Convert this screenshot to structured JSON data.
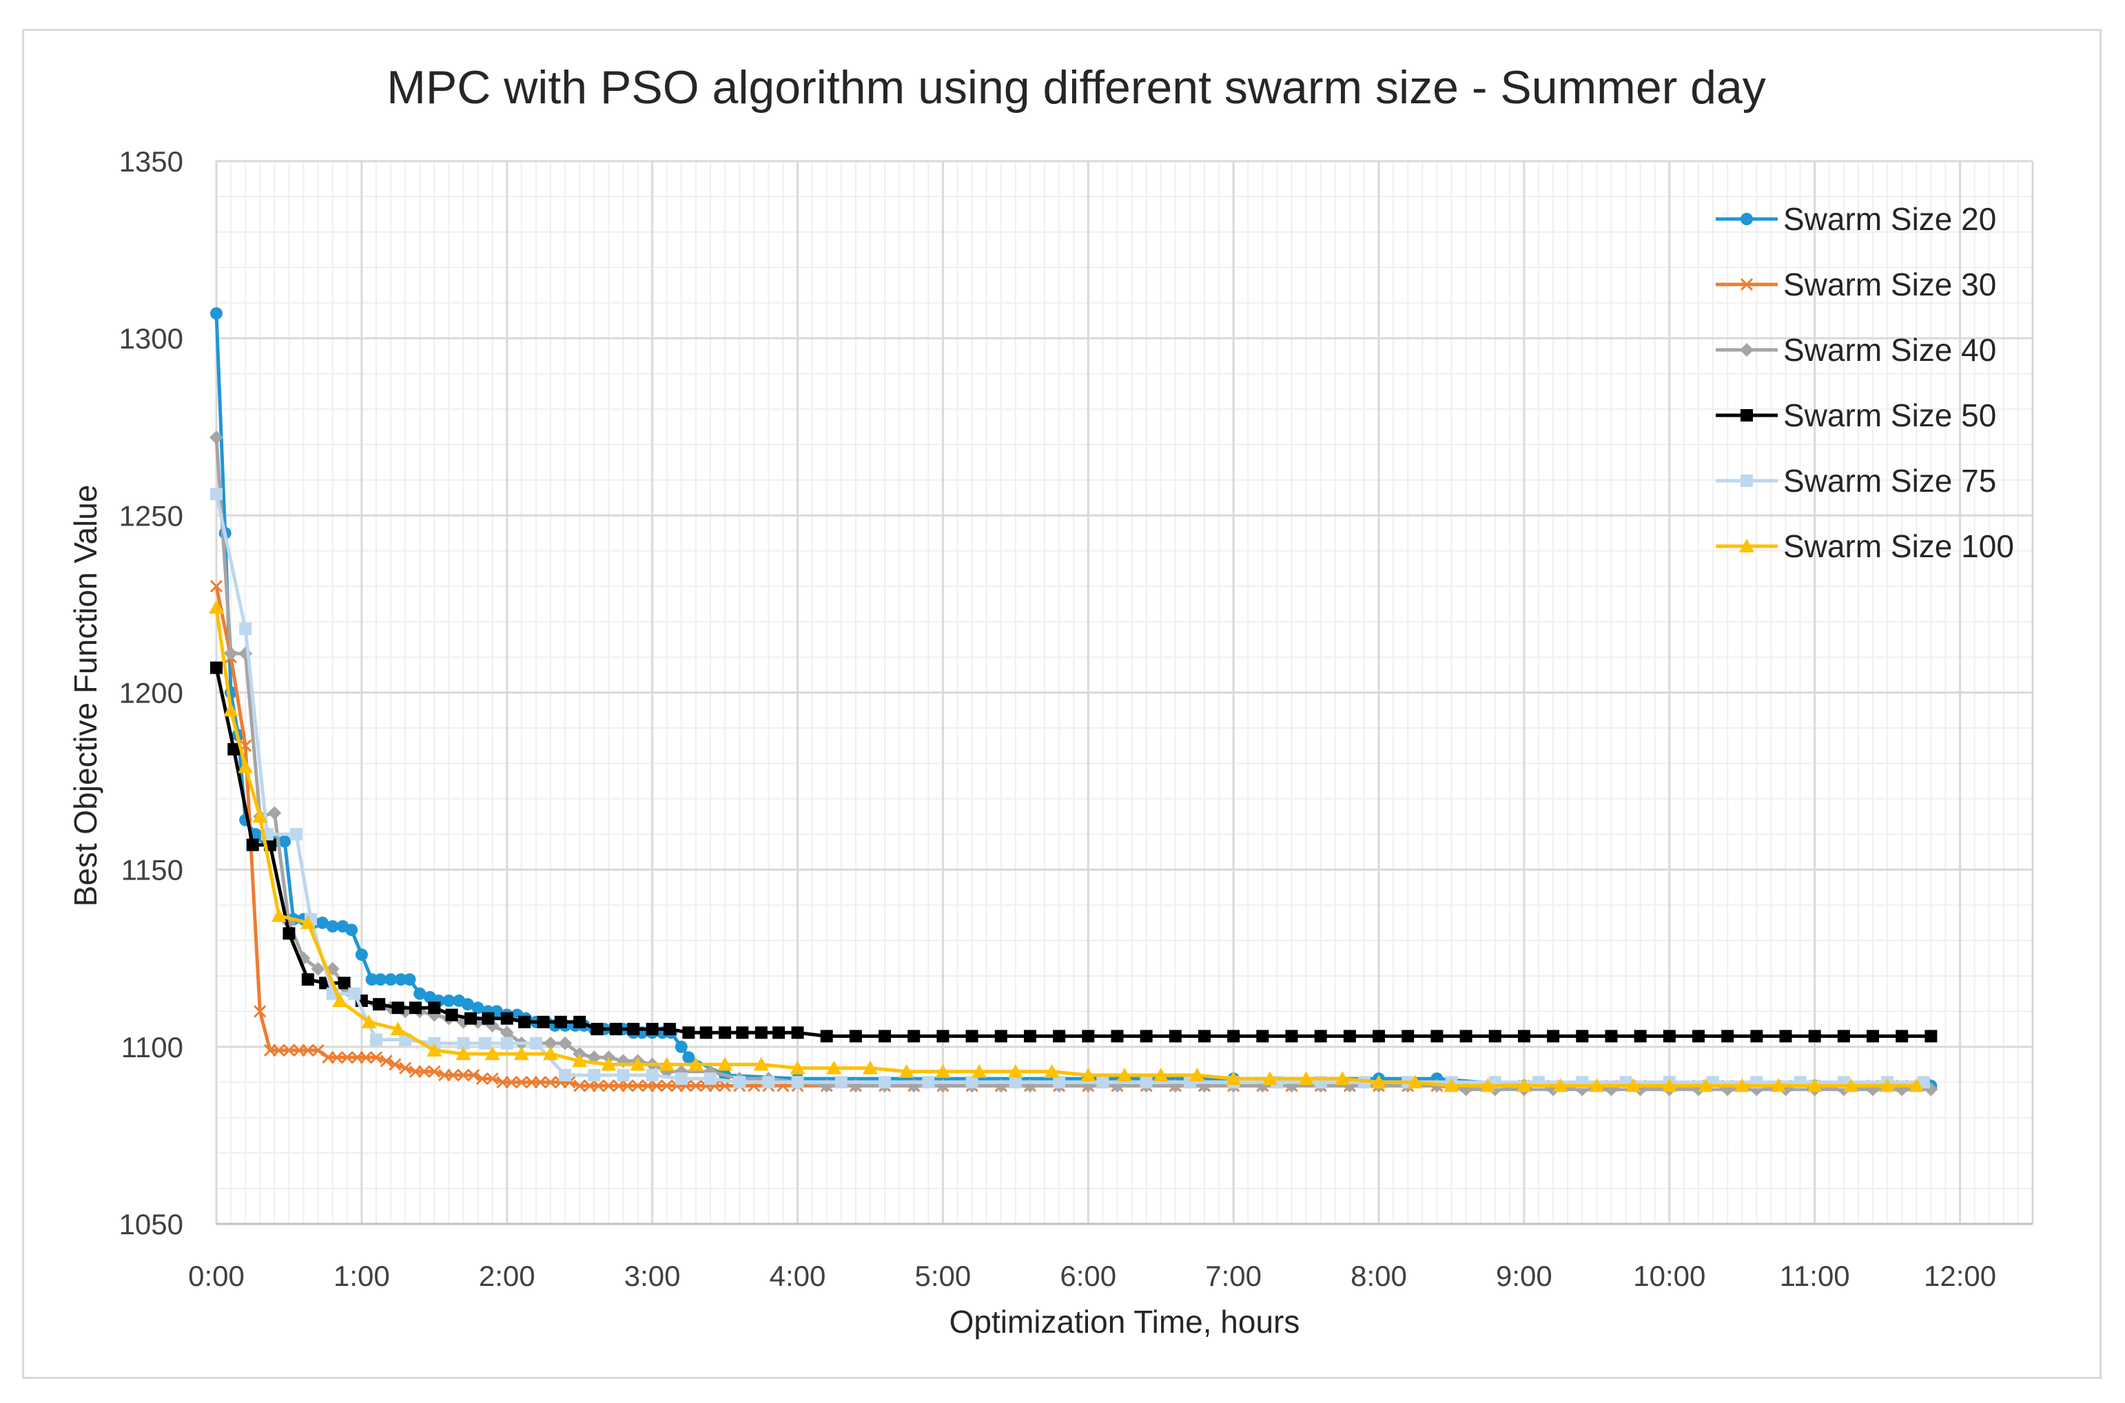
{
  "chart_data": {
    "type": "line",
    "title": "MPC with PSO algorithm using different swarm size - Summer day",
    "xlabel": "Optimization Time, hours",
    "ylabel": "Best Objective Function Value",
    "xlim": [
      0,
      12.5
    ],
    "ylim": [
      1050,
      1350
    ],
    "x_ticks": [
      0,
      1,
      2,
      3,
      4,
      5,
      6,
      7,
      8,
      9,
      10,
      11,
      12
    ],
    "x_tick_labels": [
      "0:00",
      "1:00",
      "2:00",
      "3:00",
      "4:00",
      "5:00",
      "6:00",
      "7:00",
      "8:00",
      "9:00",
      "10:00",
      "11:00",
      "12:00"
    ],
    "y_ticks": [
      1050,
      1100,
      1150,
      1200,
      1250,
      1300,
      1350
    ],
    "y_tick_labels": [
      "1050",
      "1100",
      "1150",
      "1200",
      "1250",
      "1300",
      "1350"
    ],
    "grid": true,
    "legend_position": "top-right",
    "series": [
      {
        "name": "Swarm Size 20",
        "color": "#1f96d6",
        "marker": "circle",
        "x": [
          0.0,
          0.06,
          0.1,
          0.15,
          0.2,
          0.27,
          0.33,
          0.4,
          0.47,
          0.53,
          0.6,
          0.67,
          0.73,
          0.8,
          0.87,
          0.93,
          1.0,
          1.07,
          1.13,
          1.2,
          1.27,
          1.33,
          1.4,
          1.47,
          1.53,
          1.6,
          1.67,
          1.73,
          1.8,
          1.87,
          1.93,
          2.0,
          2.07,
          2.13,
          2.2,
          2.27,
          2.33,
          2.4,
          2.47,
          2.53,
          2.6,
          2.67,
          2.73,
          2.8,
          2.87,
          2.93,
          3.0,
          3.07,
          3.13,
          3.2,
          3.25,
          3.5,
          4.0,
          5.0,
          6.0,
          7.0,
          8.0,
          8.4,
          9.0,
          10.0,
          11.0,
          11.8
        ],
        "values": [
          1307,
          1245,
          1200,
          1188,
          1164,
          1160,
          1159,
          1158,
          1158,
          1136,
          1136,
          1135,
          1135,
          1134,
          1134,
          1133,
          1126,
          1119,
          1119,
          1119,
          1119,
          1119,
          1115,
          1114,
          1113,
          1113,
          1113,
          1112,
          1111,
          1110,
          1110,
          1109,
          1109,
          1108,
          1107,
          1107,
          1106,
          1106,
          1106,
          1106,
          1105,
          1105,
          1105,
          1105,
          1104,
          1104,
          1104,
          1104,
          1104,
          1100,
          1097,
          1092,
          1091,
          1091,
          1091,
          1091,
          1091,
          1091,
          1089,
          1089,
          1089,
          1089
        ]
      },
      {
        "name": "Swarm Size 30",
        "color": "#ed7d31",
        "marker": "x",
        "x": [
          0.0,
          0.1,
          0.2,
          0.3,
          0.37,
          0.43,
          0.5,
          0.57,
          0.63,
          0.7,
          0.77,
          0.83,
          0.9,
          0.97,
          1.03,
          1.1,
          1.17,
          1.23,
          1.3,
          1.37,
          1.43,
          1.5,
          1.57,
          1.63,
          1.7,
          1.77,
          1.83,
          1.9,
          1.97,
          2.03,
          2.1,
          2.17,
          2.23,
          2.3,
          2.37,
          2.43,
          2.5,
          2.57,
          2.63,
          2.7,
          2.77,
          2.83,
          2.9,
          2.97,
          3.03,
          3.1,
          3.17,
          3.23,
          3.3,
          3.37,
          3.43,
          3.5,
          3.6,
          3.7,
          3.8,
          3.9,
          4.0,
          4.2,
          4.4,
          4.6,
          4.8,
          5.0,
          5.2,
          5.4,
          5.6,
          5.8,
          6.0,
          6.2,
          6.4,
          6.6,
          6.8,
          7.0,
          7.2,
          7.4,
          7.6,
          7.8,
          8.0,
          8.2,
          8.4,
          8.6,
          8.8,
          9.0,
          9.2,
          9.4,
          9.6,
          9.8,
          10.0,
          10.2,
          10.4,
          10.6,
          10.8,
          11.0,
          11.2,
          11.4,
          11.6,
          11.75
        ],
        "values": [
          1230,
          1210,
          1185,
          1110,
          1099,
          1099,
          1099,
          1099,
          1099,
          1099,
          1097,
          1097,
          1097,
          1097,
          1097,
          1097,
          1096,
          1095,
          1094,
          1093,
          1093,
          1093,
          1092,
          1092,
          1092,
          1092,
          1091,
          1091,
          1090,
          1090,
          1090,
          1090,
          1090,
          1090,
          1090,
          1090,
          1089,
          1089,
          1089,
          1089,
          1089,
          1089,
          1089,
          1089,
          1089,
          1089,
          1089,
          1089,
          1089,
          1089,
          1089,
          1089,
          1089,
          1089,
          1089,
          1089,
          1089,
          1089,
          1089,
          1089,
          1089,
          1089,
          1089,
          1089,
          1089,
          1089,
          1089,
          1089,
          1089,
          1089,
          1089,
          1089,
          1089,
          1089,
          1089,
          1089,
          1089,
          1089,
          1089,
          1089,
          1089,
          1089,
          1089,
          1089,
          1089,
          1089,
          1089,
          1089,
          1089,
          1089,
          1089,
          1089,
          1089,
          1089,
          1089,
          1089
        ]
      },
      {
        "name": "Swarm Size 40",
        "color": "#a5a5a5",
        "marker": "diamond",
        "x": [
          0.0,
          0.1,
          0.2,
          0.3,
          0.4,
          0.5,
          0.6,
          0.7,
          0.8,
          0.9,
          1.0,
          1.1,
          1.2,
          1.3,
          1.4,
          1.5,
          1.6,
          1.7,
          1.8,
          1.9,
          2.0,
          2.1,
          2.2,
          2.3,
          2.4,
          2.5,
          2.6,
          2.7,
          2.8,
          2.9,
          3.0,
          3.1,
          3.2,
          3.4,
          3.6,
          3.8,
          4.0,
          4.2,
          4.4,
          4.6,
          4.8,
          5.0,
          5.2,
          5.4,
          5.6,
          5.8,
          6.0,
          6.2,
          6.4,
          6.6,
          6.8,
          7.0,
          7.2,
          7.4,
          7.6,
          7.8,
          8.0,
          8.2,
          8.4,
          8.6,
          8.8,
          9.0,
          9.2,
          9.4,
          9.6,
          9.8,
          10.0,
          10.2,
          10.4,
          10.6,
          10.8,
          11.0,
          11.2,
          11.4,
          11.6,
          11.8
        ],
        "values": [
          1272,
          1211,
          1211,
          1165,
          1166,
          1135,
          1125,
          1122,
          1122,
          1116,
          1113,
          1112,
          1111,
          1110,
          1110,
          1109,
          1108,
          1107,
          1107,
          1106,
          1104,
          1101,
          1101,
          1101,
          1101,
          1098,
          1097,
          1097,
          1096,
          1096,
          1095,
          1093,
          1093,
          1093,
          1091,
          1091,
          1090,
          1089,
          1089,
          1089,
          1089,
          1089,
          1089,
          1089,
          1089,
          1089,
          1089,
          1089,
          1089,
          1089,
          1089,
          1089,
          1089,
          1089,
          1089,
          1089,
          1089,
          1089,
          1089,
          1088,
          1088,
          1088,
          1088,
          1088,
          1088,
          1088,
          1088,
          1088,
          1088,
          1088,
          1088,
          1088,
          1088,
          1088,
          1088,
          1088
        ]
      },
      {
        "name": "Swarm Size 50",
        "color": "#000000",
        "marker": "square",
        "x": [
          0.0,
          0.12,
          0.25,
          0.37,
          0.5,
          0.63,
          0.75,
          0.88,
          1.0,
          1.12,
          1.25,
          1.37,
          1.5,
          1.62,
          1.75,
          1.87,
          2.0,
          2.12,
          2.25,
          2.37,
          2.5,
          2.62,
          2.75,
          2.87,
          3.0,
          3.12,
          3.25,
          3.37,
          3.5,
          3.62,
          3.75,
          3.87,
          4.0,
          4.2,
          4.4,
          4.6,
          4.8,
          5.0,
          5.2,
          5.4,
          5.6,
          5.8,
          6.0,
          6.2,
          6.4,
          6.6,
          6.8,
          7.0,
          7.2,
          7.4,
          7.6,
          7.8,
          8.0,
          8.2,
          8.4,
          8.6,
          8.8,
          9.0,
          9.2,
          9.4,
          9.6,
          9.8,
          10.0,
          10.2,
          10.4,
          10.6,
          10.8,
          11.0,
          11.2,
          11.4,
          11.6,
          11.8
        ],
        "values": [
          1207,
          1184,
          1157,
          1157,
          1132,
          1119,
          1118,
          1118,
          1113,
          1112,
          1111,
          1111,
          1111,
          1109,
          1108,
          1108,
          1108,
          1107,
          1107,
          1107,
          1107,
          1105,
          1105,
          1105,
          1105,
          1105,
          1104,
          1104,
          1104,
          1104,
          1104,
          1104,
          1104,
          1103,
          1103,
          1103,
          1103,
          1103,
          1103,
          1103,
          1103,
          1103,
          1103,
          1103,
          1103,
          1103,
          1103,
          1103,
          1103,
          1103,
          1103,
          1103,
          1103,
          1103,
          1103,
          1103,
          1103,
          1103,
          1103,
          1103,
          1103,
          1103,
          1103,
          1103,
          1103,
          1103,
          1103,
          1103,
          1103,
          1103,
          1103,
          1103
        ]
      },
      {
        "name": "Swarm Size 75",
        "color": "#bdd7ee",
        "marker": "square",
        "x": [
          0.0,
          0.2,
          0.35,
          0.55,
          0.65,
          0.8,
          0.95,
          1.1,
          1.3,
          1.5,
          1.7,
          1.85,
          2.0,
          2.2,
          2.4,
          2.6,
          2.8,
          3.0,
          3.2,
          3.4,
          3.6,
          3.8,
          4.0,
          4.3,
          4.6,
          4.9,
          5.2,
          5.5,
          5.8,
          6.1,
          6.4,
          6.7,
          7.0,
          7.3,
          7.6,
          7.9,
          8.2,
          8.5,
          8.8,
          9.1,
          9.4,
          9.7,
          10.0,
          10.3,
          10.6,
          10.9,
          11.2,
          11.5,
          11.75
        ],
        "values": [
          1256,
          1218,
          1160,
          1160,
          1136,
          1115,
          1115,
          1102,
          1102,
          1101,
          1101,
          1101,
          1101,
          1101,
          1092,
          1092,
          1092,
          1092,
          1091,
          1091,
          1090,
          1090,
          1090,
          1090,
          1090,
          1090,
          1090,
          1090,
          1090,
          1090,
          1090,
          1090,
          1090,
          1090,
          1090,
          1090,
          1090,
          1090,
          1090,
          1090,
          1090,
          1090,
          1090,
          1090,
          1090,
          1090,
          1090,
          1090,
          1090
        ]
      },
      {
        "name": "Swarm Size 100",
        "color": "#ffc000",
        "marker": "triangle",
        "x": [
          0.0,
          0.1,
          0.2,
          0.3,
          0.43,
          0.63,
          0.85,
          1.05,
          1.25,
          1.5,
          1.7,
          1.9,
          2.1,
          2.3,
          2.5,
          2.7,
          2.9,
          3.1,
          3.3,
          3.5,
          3.75,
          4.0,
          4.25,
          4.5,
          4.75,
          5.0,
          5.25,
          5.5,
          5.75,
          6.0,
          6.25,
          6.5,
          6.75,
          7.0,
          7.25,
          7.5,
          7.75,
          8.0,
          8.25,
          8.5,
          8.75,
          9.0,
          9.25,
          9.5,
          9.75,
          10.0,
          10.25,
          10.5,
          10.75,
          11.0,
          11.25,
          11.5,
          11.7
        ],
        "values": [
          1224,
          1195,
          1179,
          1165,
          1137,
          1135,
          1113,
          1107,
          1105,
          1099,
          1098,
          1098,
          1098,
          1098,
          1096,
          1095,
          1095,
          1095,
          1095,
          1095,
          1095,
          1094,
          1094,
          1094,
          1093,
          1093,
          1093,
          1093,
          1093,
          1092,
          1092,
          1092,
          1092,
          1091,
          1091,
          1091,
          1091,
          1090,
          1090,
          1089,
          1089,
          1089,
          1089,
          1089,
          1089,
          1089,
          1089,
          1089,
          1089,
          1089,
          1089,
          1089,
          1089
        ]
      }
    ]
  }
}
